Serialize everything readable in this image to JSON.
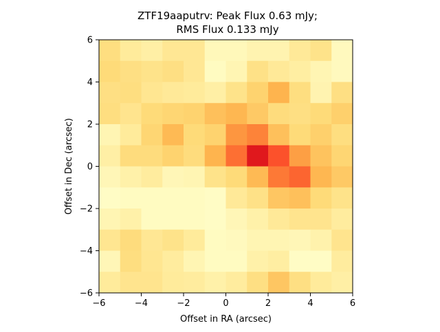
{
  "chart_data": {
    "type": "heatmap",
    "title_lines": [
      "ZTF19aaputrv: Peak Flux 0.63 mJy;",
      "RMS Flux 0.133 mJy"
    ],
    "xlabel": "Offset in RA (arcsec)",
    "ylabel": "Offset in Dec (arcsec)",
    "xlim": [
      -6,
      6
    ],
    "ylim": [
      -6,
      6
    ],
    "xticks": [
      -6,
      -4,
      -2,
      0,
      2,
      4,
      6
    ],
    "yticks": [
      -6,
      -4,
      -2,
      0,
      2,
      4,
      6
    ],
    "xtick_labels": [
      "−6",
      "−4",
      "−2",
      "0",
      "2",
      "4",
      "6"
    ],
    "ytick_labels": [
      "−6",
      "−4",
      "−2",
      "0",
      "2",
      "4",
      "6"
    ],
    "colormap": "YlOrRd",
    "grid": false,
    "values_top_to_bottom": [
      [
        0.22,
        0.14,
        0.11,
        0.16,
        0.16,
        0.05,
        0.05,
        0.08,
        0.08,
        0.15,
        0.19,
        0.04
      ],
      [
        0.24,
        0.21,
        0.19,
        0.21,
        0.16,
        0.03,
        0.07,
        0.2,
        0.15,
        0.12,
        0.07,
        0.04
      ],
      [
        0.21,
        0.22,
        0.17,
        0.15,
        0.14,
        0.11,
        0.19,
        0.27,
        0.37,
        0.22,
        0.08,
        0.21
      ],
      [
        0.22,
        0.18,
        0.24,
        0.26,
        0.27,
        0.33,
        0.36,
        0.3,
        0.23,
        0.21,
        0.24,
        0.28
      ],
      [
        0.07,
        0.14,
        0.26,
        0.35,
        0.24,
        0.27,
        0.47,
        0.52,
        0.33,
        0.24,
        0.28,
        0.22
      ],
      [
        0.11,
        0.23,
        0.23,
        0.27,
        0.23,
        0.37,
        0.56,
        0.76,
        0.62,
        0.44,
        0.32,
        0.26
      ],
      [
        0.06,
        0.1,
        0.13,
        0.06,
        0.07,
        0.19,
        0.24,
        0.35,
        0.54,
        0.58,
        0.36,
        0.3
      ],
      [
        0.02,
        0.03,
        0.03,
        0.03,
        0.03,
        0.02,
        0.15,
        0.2,
        0.31,
        0.33,
        0.24,
        0.19
      ],
      [
        0.07,
        0.1,
        0.03,
        0.03,
        0.03,
        0.02,
        0.06,
        0.1,
        0.15,
        0.18,
        0.18,
        0.13
      ],
      [
        0.17,
        0.23,
        0.16,
        0.19,
        0.14,
        0.03,
        0.04,
        0.07,
        0.07,
        0.06,
        0.09,
        0.18
      ],
      [
        0.06,
        0.22,
        0.17,
        0.13,
        0.07,
        0.03,
        0.03,
        0.1,
        0.12,
        0.02,
        0.02,
        0.13
      ],
      [
        0.14,
        0.18,
        0.18,
        0.14,
        0.13,
        0.1,
        0.13,
        0.21,
        0.31,
        0.21,
        0.14,
        0.11
      ]
    ]
  }
}
